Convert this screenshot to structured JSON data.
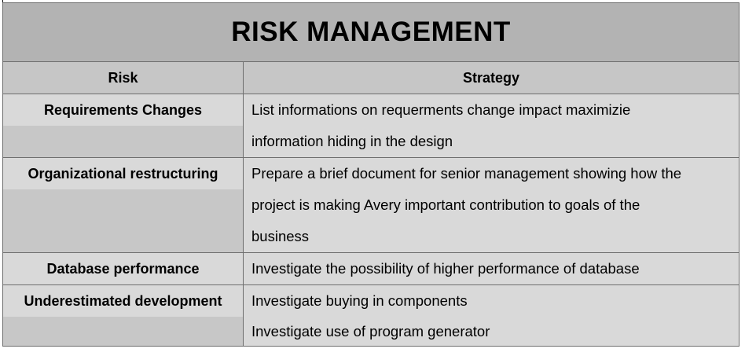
{
  "title": "RISK MANAGEMENT",
  "headers": {
    "risk": "Risk",
    "strategy": "Strategy"
  },
  "rows": [
    {
      "risk": "Requirements Changes",
      "strategy": [
        "List informations on requerments change impact maximizie",
        "information hiding in the design"
      ]
    },
    {
      "risk": "Organizational restructuring",
      "strategy": [
        "Prepare a brief document for senior management showing how the",
        "project is making Avery important contribution to goals of the",
        "business"
      ]
    },
    {
      "risk": "Database performance",
      "strategy": [
        "Investigate the possibility of higher performance of database"
      ]
    },
    {
      "risk": "Underestimated development",
      "strategy": [
        "Investigate buying in components",
        "Investigate use of program generator"
      ]
    }
  ],
  "colors": {
    "title_bg": "#b3b3b3",
    "header_bg": "#c6c6c6",
    "cell_bg": "#d9d9d9",
    "risk_cell_shade": "#c7c7c7",
    "border": "#6e6e6e"
  }
}
